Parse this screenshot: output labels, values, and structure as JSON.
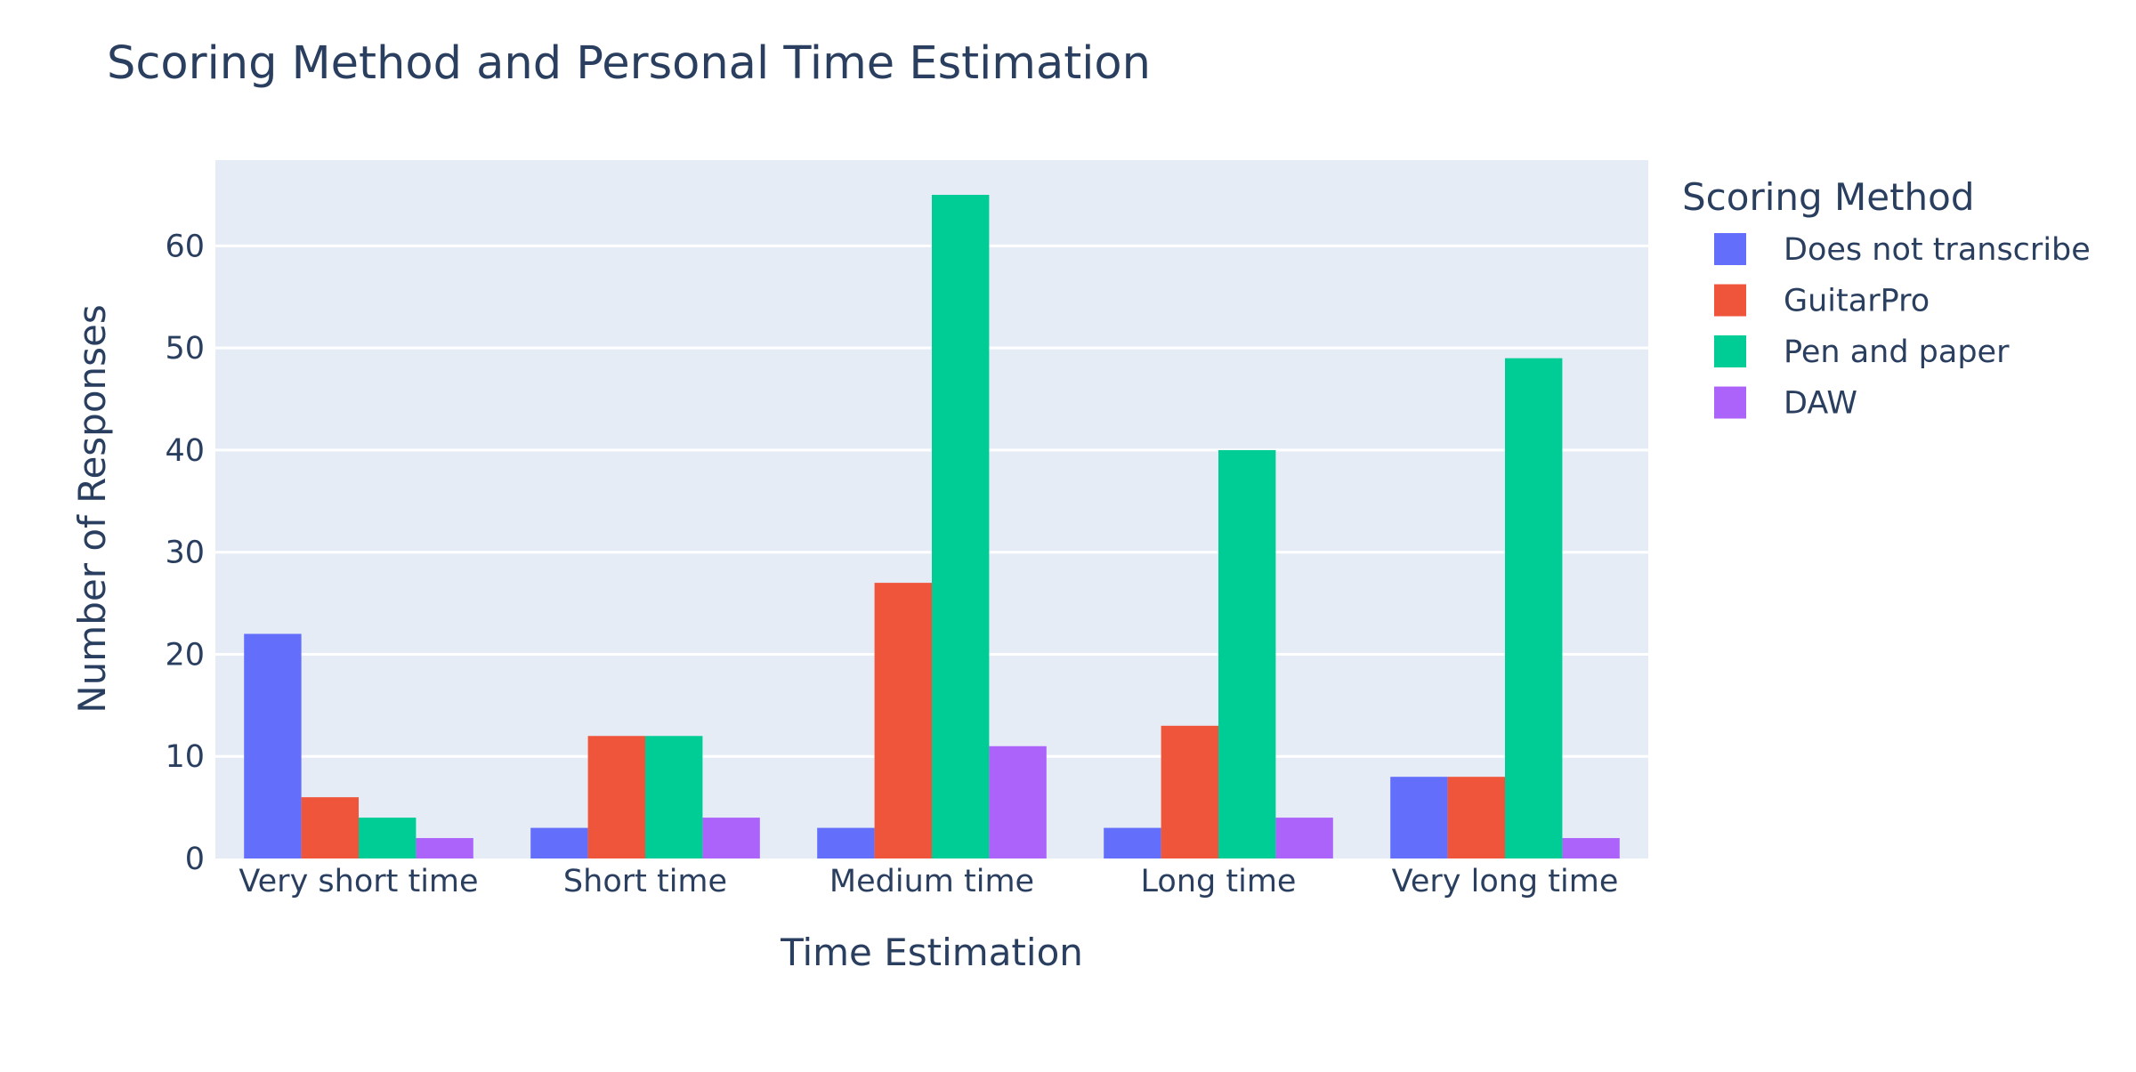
{
  "chart_data": {
    "type": "bar",
    "title": "Scoring Method and Personal Time Estimation",
    "xlabel": "Time Estimation",
    "ylabel": "Number of Responses",
    "categories": [
      "Very short time",
      "Short time",
      "Medium time",
      "Long time",
      "Very long time"
    ],
    "series": [
      {
        "name": "Does not transcribe",
        "color": "#636efa",
        "values": [
          22,
          3,
          3,
          3,
          8
        ]
      },
      {
        "name": "GuitarPro",
        "color": "#ef553b",
        "values": [
          6,
          12,
          27,
          13,
          8
        ]
      },
      {
        "name": "Pen and paper",
        "color": "#00cc96",
        "values": [
          4,
          12,
          65,
          40,
          49
        ]
      },
      {
        "name": "DAW",
        "color": "#ab63fa",
        "values": [
          2,
          4,
          11,
          4,
          2
        ]
      }
    ],
    "ylim": [
      0,
      68.4
    ],
    "yticks": [
      0,
      10,
      20,
      30,
      40,
      50,
      60
    ],
    "grid": true,
    "plot_background": "#e5ecf6",
    "legend": {
      "title": "Scoring Method",
      "position": "right"
    }
  }
}
